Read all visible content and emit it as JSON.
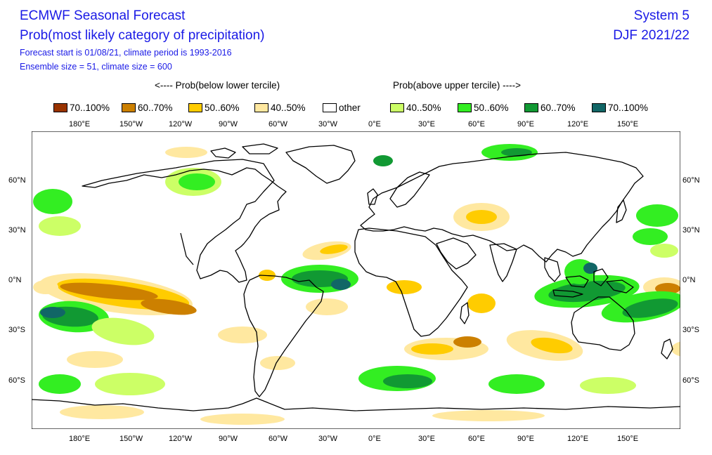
{
  "header": {
    "title": "ECMWF Seasonal Forecast",
    "subtitle": "Prob(most likely category of precipitation)",
    "forecast_info": "Forecast start is 01/08/21, climate period is 1993-2016",
    "ensemble_info": "Ensemble size = 51, climate size = 600",
    "system": "System 5",
    "season": "DJF 2021/22"
  },
  "legend": {
    "below_label": "<---- Prob(below lower tercile)",
    "above_label": "Prob(above upper tercile) ---->",
    "items": [
      {
        "label": "70..100%",
        "color": "#993300"
      },
      {
        "label": "60..70%",
        "color": "#cc8000"
      },
      {
        "label": "50..60%",
        "color": "#ffcc00"
      },
      {
        "label": "40..50%",
        "color": "#ffe8a0"
      },
      {
        "label": "other",
        "color": "#ffffff"
      },
      {
        "label": "40..50%",
        "color": "#ccff66"
      },
      {
        "label": "50..60%",
        "color": "#33ee22"
      },
      {
        "label": "60..70%",
        "color": "#119933"
      },
      {
        "label": "70..100%",
        "color": "#116666"
      }
    ]
  },
  "map": {
    "lon_labels": [
      "180°E",
      "150°W",
      "120°W",
      "90°W",
      "60°W",
      "30°W",
      "0°E",
      "30°E",
      "60°E",
      "90°E",
      "120°E",
      "150°E"
    ],
    "lat_labels_left": [
      "60°N",
      "30°N",
      "0°N",
      "30°S",
      "60°S"
    ],
    "lat_labels_right": [
      "60°N",
      "30°N",
      "0°N",
      "30°S",
      "60°S"
    ]
  }
}
